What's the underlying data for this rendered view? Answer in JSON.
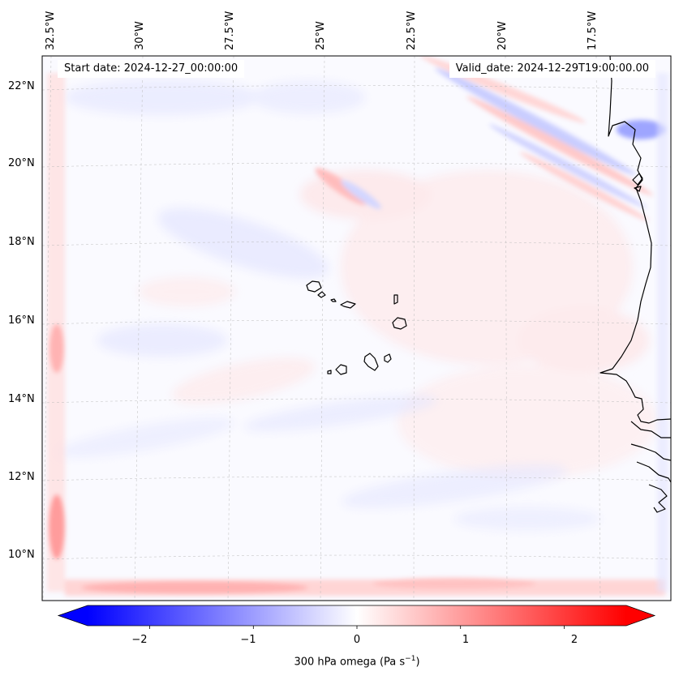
{
  "map": {
    "projection": "Lambert conformal",
    "extent_lon_w": [
      32.8,
      14.8
    ],
    "extent_lat_n": [
      8.8,
      22.8
    ],
    "lat_labels": [
      "22°N",
      "20°N",
      "18°N",
      "16°N",
      "14°N",
      "12°N",
      "10°N"
    ],
    "lon_labels": [
      "32.5°W",
      "30°W",
      "27.5°W",
      "25°W",
      "22.5°W",
      "20°W",
      "17.5°W"
    ],
    "start_date": "Start date: 2024-12-27_00:00:00",
    "valid_date": "Valid_date: 2024-12-29T19:00:00.00",
    "islands": [
      "Santo Antão",
      "São Vicente",
      "São Nicolau",
      "Sal",
      "Boa Vista",
      "Maio",
      "Santiago",
      "Fogo",
      "Brava"
    ],
    "coastline_region": "West African coast (Senegal / Gambia / Guinea-Bissau)",
    "colors": {
      "land_outline": "#000000",
      "gridline": "#bbbbbb",
      "background": "#fafaff"
    }
  },
  "colorbar": {
    "label": "300 hPa omega (Pa s",
    "label_sup": "−1",
    "label_close": ")",
    "ticks": [
      "−2",
      "−1",
      "0",
      "1",
      "2"
    ],
    "tick_values": [
      -2,
      -1,
      0,
      1,
      2
    ],
    "vmin": -2.6,
    "vmax": 2.6,
    "colormap": "bwr",
    "extend": "both",
    "colors": {
      "negative": "#0000ff",
      "zero": "#ffffff",
      "positive": "#ff0000"
    }
  }
}
